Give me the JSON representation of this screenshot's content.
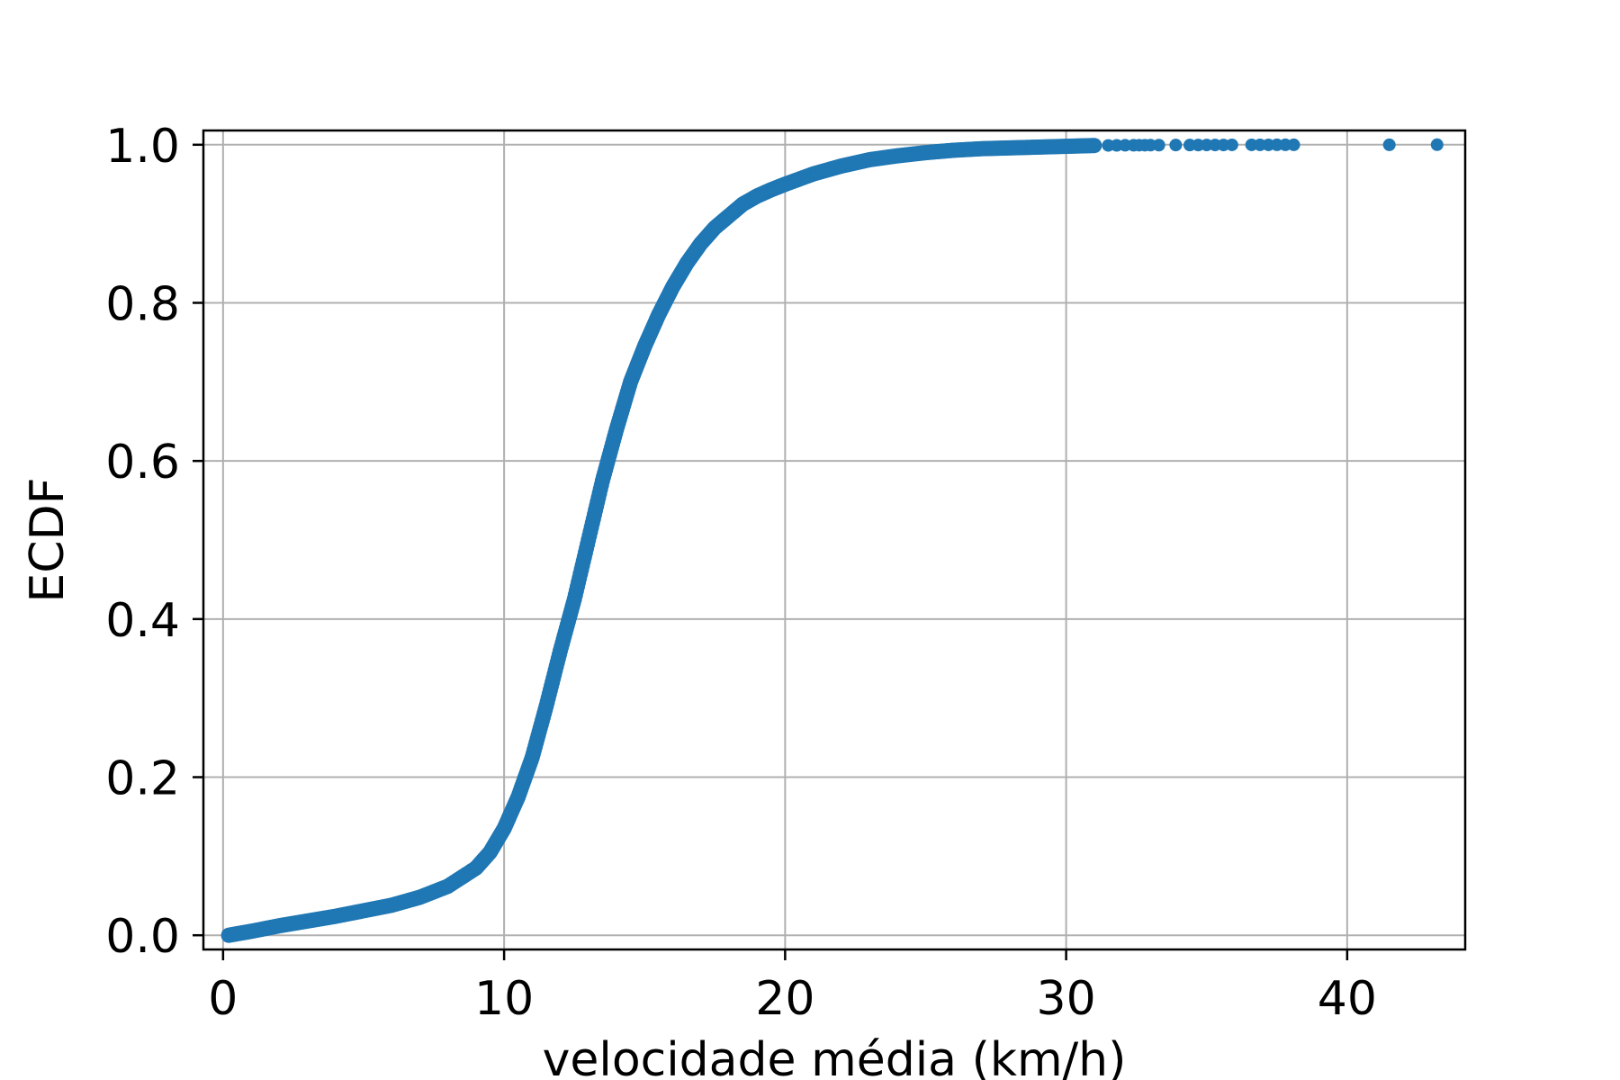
{
  "chart_data": {
    "type": "scatter",
    "xlabel": "velocidade média (km/h)",
    "ylabel": "ECDF",
    "xlim": [
      -0.7,
      44.2
    ],
    "ylim": [
      -0.018,
      1.018
    ],
    "grid": true,
    "marker_color": "#1f77b4",
    "x_ticks": [
      0,
      10,
      20,
      30,
      40
    ],
    "y_ticks": [
      0.0,
      0.2,
      0.4,
      0.6,
      0.8,
      1.0
    ],
    "x_tick_labels": [
      "0",
      "10",
      "20",
      "30",
      "40"
    ],
    "y_tick_labels": [
      "0.0",
      "0.2",
      "0.4",
      "0.6",
      "0.8",
      "1.0"
    ],
    "curve": {
      "x": [
        0.2,
        1,
        2,
        3,
        4,
        5,
        6,
        7,
        8,
        9,
        9.5,
        10,
        10.5,
        11,
        11.5,
        12,
        12.5,
        13,
        13.5,
        14,
        14.5,
        15,
        15.5,
        16,
        16.5,
        17,
        17.5,
        18,
        18.5,
        19,
        19.5,
        20,
        21,
        22,
        23,
        24,
        25,
        26,
        27,
        28,
        29,
        30,
        31
      ],
      "y": [
        0.0,
        0.005,
        0.012,
        0.018,
        0.024,
        0.031,
        0.038,
        0.048,
        0.062,
        0.085,
        0.105,
        0.135,
        0.175,
        0.225,
        0.29,
        0.36,
        0.425,
        0.5,
        0.575,
        0.64,
        0.7,
        0.745,
        0.785,
        0.82,
        0.85,
        0.875,
        0.895,
        0.91,
        0.925,
        0.935,
        0.943,
        0.95,
        0.963,
        0.973,
        0.981,
        0.986,
        0.99,
        0.993,
        0.995,
        0.996,
        0.997,
        0.998,
        0.999
      ]
    },
    "outliers": {
      "x": [
        31.5,
        31.8,
        32.1,
        32.4,
        32.6,
        32.8,
        33.0,
        33.3,
        33.9,
        34.4,
        34.7,
        35.0,
        35.3,
        35.6,
        35.9,
        36.6,
        36.9,
        37.2,
        37.5,
        37.8,
        38.1,
        41.5,
        43.2
      ],
      "y": [
        0.9991,
        0.9992,
        0.9993,
        0.9993,
        0.9994,
        0.9994,
        0.9995,
        0.9995,
        0.9996,
        0.9996,
        0.9996,
        0.9997,
        0.9997,
        0.9997,
        0.9998,
        0.9998,
        0.9998,
        0.9998,
        0.9999,
        0.9999,
        0.9999,
        0.9999,
        1.0
      ]
    }
  }
}
